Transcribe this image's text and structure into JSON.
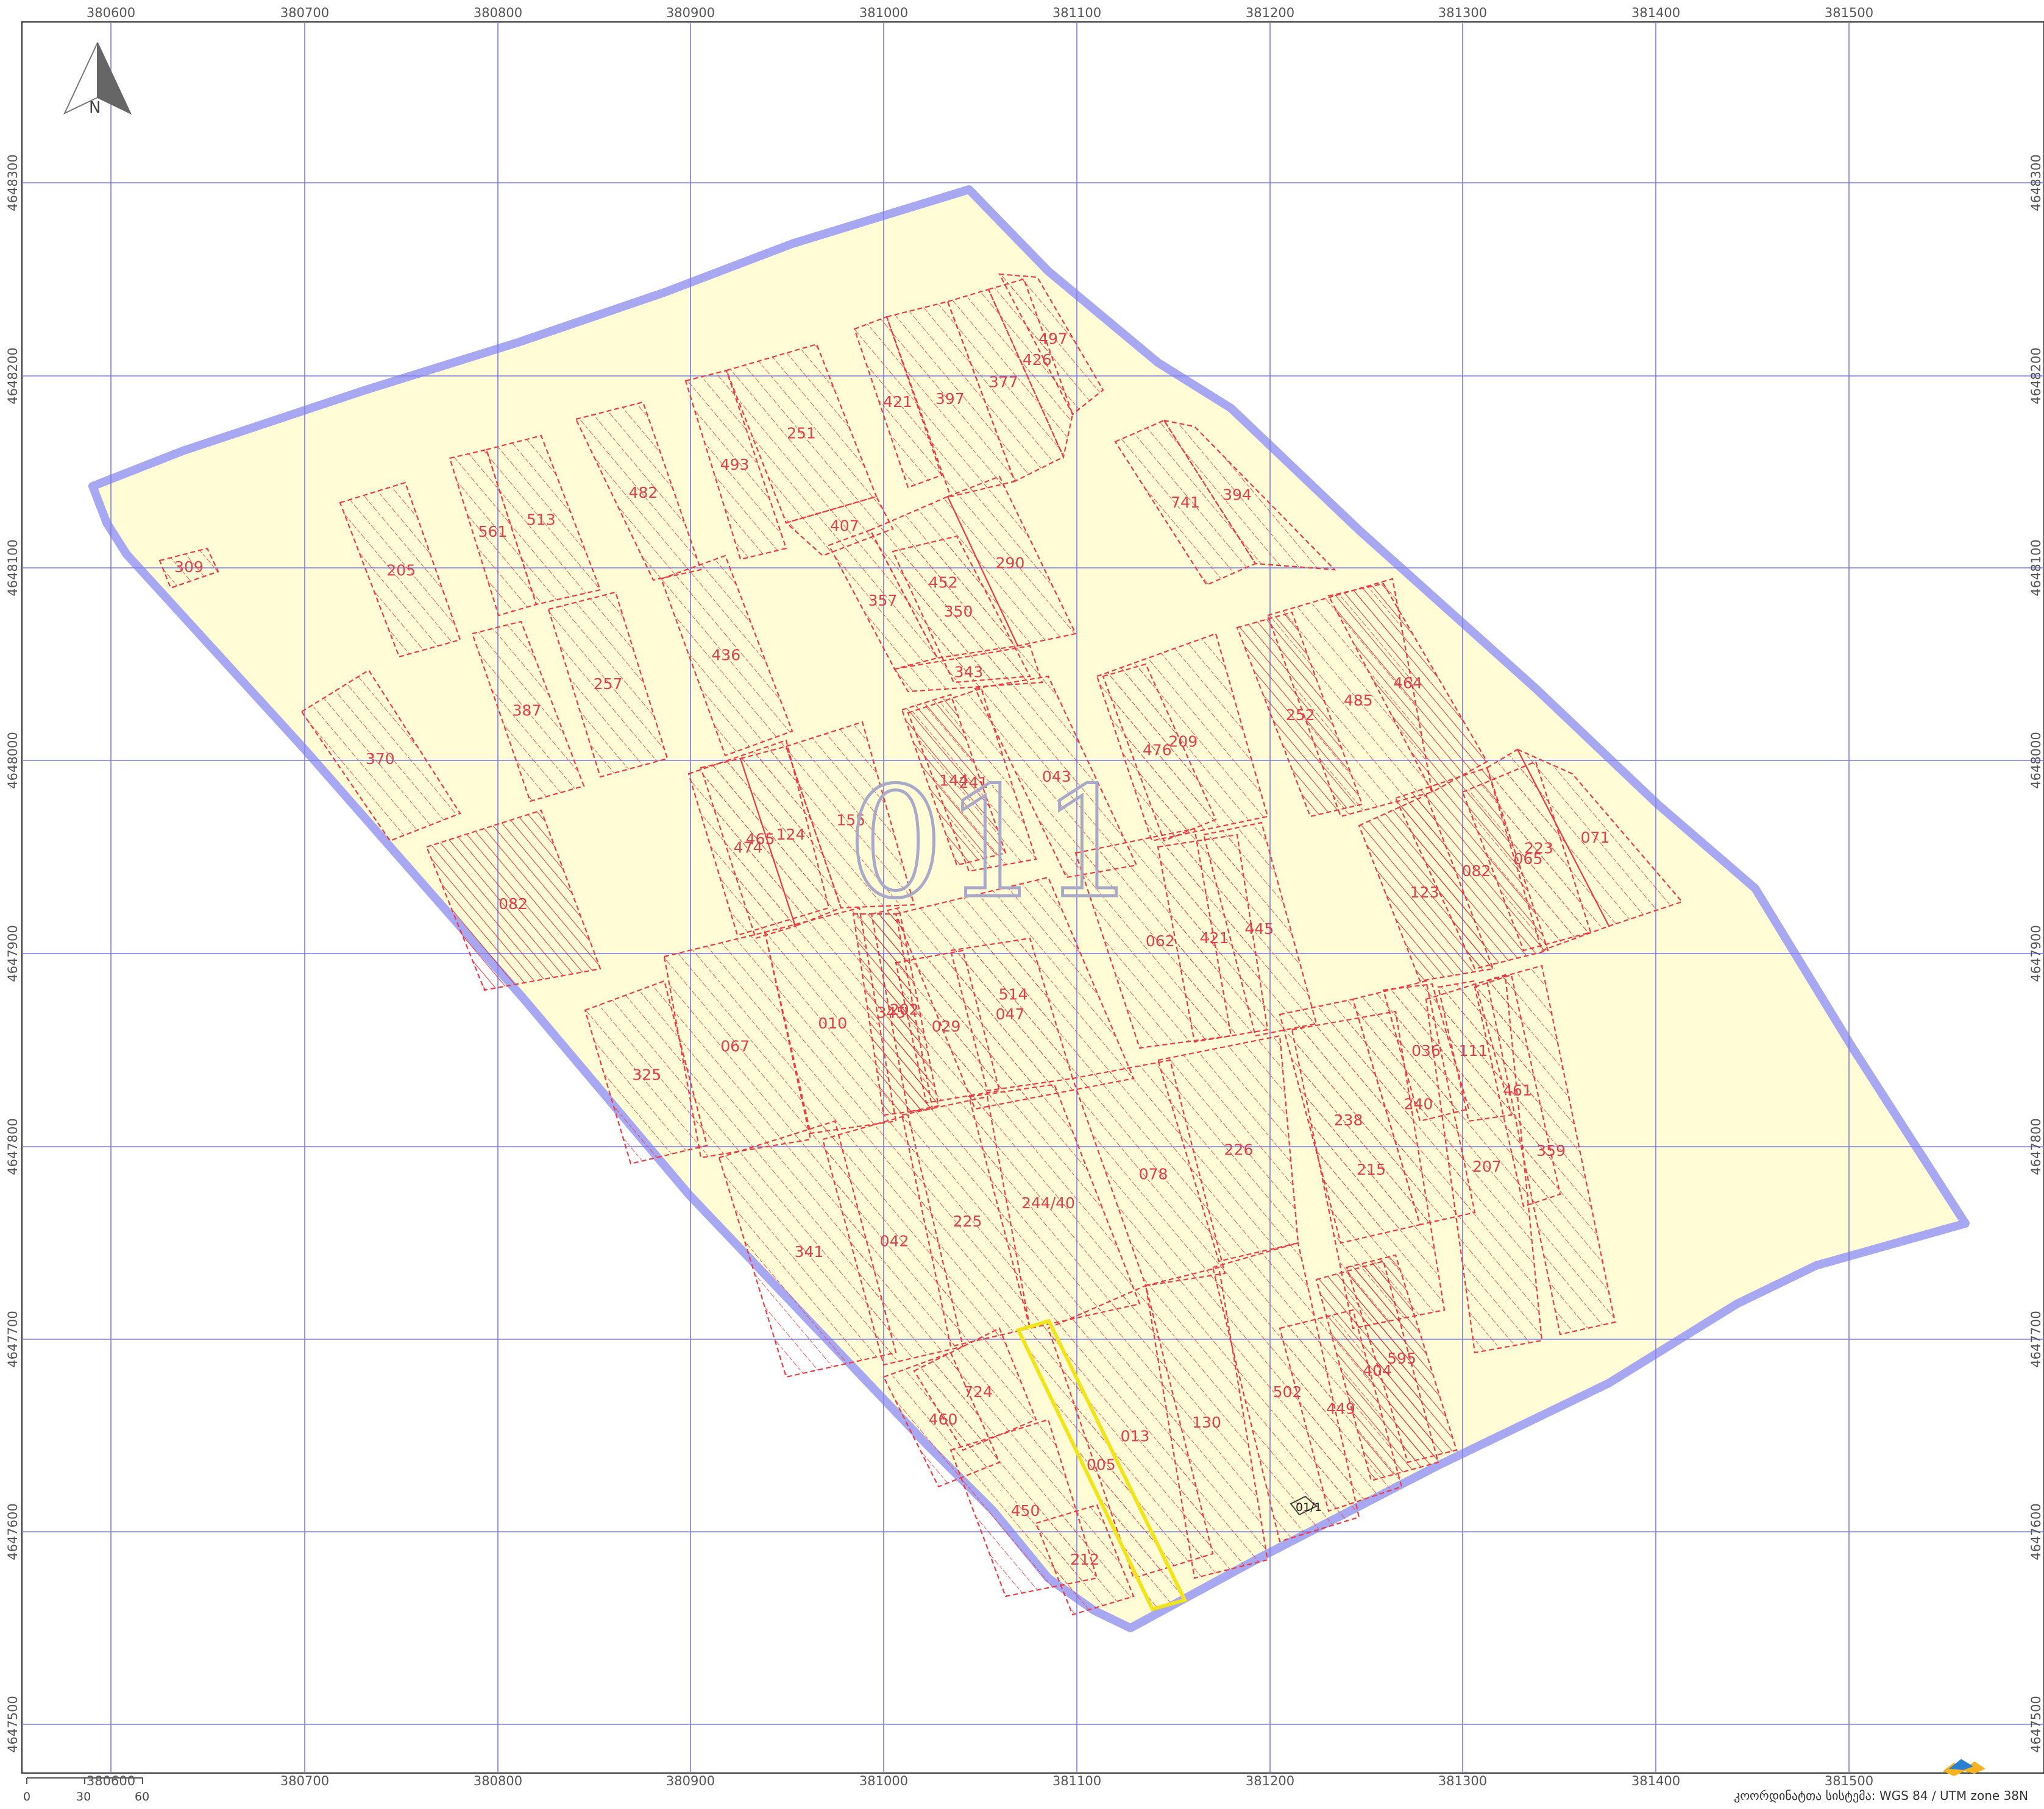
{
  "map": {
    "block_label": "011",
    "north_label": "N",
    "x_ticks": [
      "380600",
      "380700",
      "380800",
      "380900",
      "381000",
      "381100",
      "381200",
      "381300",
      "381400",
      "381500"
    ],
    "y_ticks": [
      "4648300",
      "4648200",
      "4648100",
      "4648000",
      "4647900",
      "4647800",
      "4647700",
      "4647600",
      "4647500"
    ],
    "scale_labels": [
      "0",
      "30",
      "60"
    ],
    "crs_label": "კოორდინატთა სისტემა: WGS 84 / UTM zone 38N",
    "logo_name": "logo-icon",
    "colors": {
      "block_fill": "#fffcd6",
      "block_outline": "#a8a8f2",
      "grid": "#7a7aea",
      "parcel": "#ee3a42",
      "highlight": "#f2e41a"
    },
    "highlighted_parcel": "005",
    "special_label": "01/1",
    "parcels": [
      {
        "id": "309",
        "label": "309"
      },
      {
        "id": "205",
        "label": "205"
      },
      {
        "id": "561",
        "label": "561"
      },
      {
        "id": "513",
        "label": "513"
      },
      {
        "id": "482",
        "label": "482"
      },
      {
        "id": "493",
        "label": "493"
      },
      {
        "id": "251",
        "label": "251"
      },
      {
        "id": "407",
        "label": "407"
      },
      {
        "id": "421",
        "label": "421"
      },
      {
        "id": "397",
        "label": "397"
      },
      {
        "id": "377",
        "label": "377"
      },
      {
        "id": "426",
        "label": "426"
      },
      {
        "id": "497",
        "label": "497"
      },
      {
        "id": "741",
        "label": "741"
      },
      {
        "id": "394",
        "label": "394"
      },
      {
        "id": "357",
        "label": "357"
      },
      {
        "id": "452",
        "label": "452"
      },
      {
        "id": "290",
        "label": "290"
      },
      {
        "id": "350",
        "label": "350"
      },
      {
        "id": "343",
        "label": "343"
      },
      {
        "id": "436",
        "label": "436"
      },
      {
        "id": "257",
        "label": "257"
      },
      {
        "id": "387",
        "label": "387"
      },
      {
        "id": "370",
        "label": "370"
      },
      {
        "id": "082",
        "label": "082"
      },
      {
        "id": "325",
        "label": "325"
      },
      {
        "id": "067",
        "label": "067"
      },
      {
        "id": "010",
        "label": "010"
      },
      {
        "id": "465",
        "label": "465"
      },
      {
        "id": "474",
        "label": "474"
      },
      {
        "id": "124",
        "label": "124"
      },
      {
        "id": "155",
        "label": "155"
      },
      {
        "id": "144",
        "label": "144"
      },
      {
        "id": "241",
        "label": "241"
      },
      {
        "id": "043",
        "label": "043"
      },
      {
        "id": "209",
        "label": "209"
      },
      {
        "id": "476",
        "label": "476"
      },
      {
        "id": "252",
        "label": "252"
      },
      {
        "id": "485",
        "label": "485"
      },
      {
        "id": "464",
        "label": "464"
      },
      {
        "id": "514",
        "label": "514"
      },
      {
        "id": "062",
        "label": "062"
      },
      {
        "id": "421b",
        "label": "421"
      },
      {
        "id": "445",
        "label": "445"
      },
      {
        "id": "029",
        "label": "029"
      },
      {
        "id": "047",
        "label": "047"
      },
      {
        "id": "202",
        "label": "202"
      },
      {
        "id": "345",
        "label": "345"
      },
      {
        "id": "123",
        "label": "123"
      },
      {
        "id": "082b",
        "label": "082"
      },
      {
        "id": "223",
        "label": "223"
      },
      {
        "id": "071",
        "label": "071"
      },
      {
        "id": "065",
        "label": "065"
      },
      {
        "id": "238",
        "label": "238"
      },
      {
        "id": "240",
        "label": "240"
      },
      {
        "id": "036",
        "label": "036"
      },
      {
        "id": "111",
        "label": "111"
      },
      {
        "id": "461",
        "label": "461"
      },
      {
        "id": "359",
        "label": "359"
      },
      {
        "id": "207",
        "label": "207"
      },
      {
        "id": "341",
        "label": "341"
      },
      {
        "id": "042",
        "label": "042"
      },
      {
        "id": "225",
        "label": "225"
      },
      {
        "id": "244",
        "label": "244/40"
      },
      {
        "id": "078",
        "label": "078"
      },
      {
        "id": "226",
        "label": "226"
      },
      {
        "id": "215",
        "label": "215"
      },
      {
        "id": "724",
        "label": "724"
      },
      {
        "id": "460",
        "label": "460"
      },
      {
        "id": "005",
        "label": "005"
      },
      {
        "id": "013",
        "label": "013"
      },
      {
        "id": "130",
        "label": "130"
      },
      {
        "id": "502",
        "label": "502"
      },
      {
        "id": "449",
        "label": "449"
      },
      {
        "id": "404",
        "label": "404"
      },
      {
        "id": "595",
        "label": "595"
      },
      {
        "id": "450",
        "label": "450"
      },
      {
        "id": "212",
        "label": "212"
      }
    ]
  }
}
